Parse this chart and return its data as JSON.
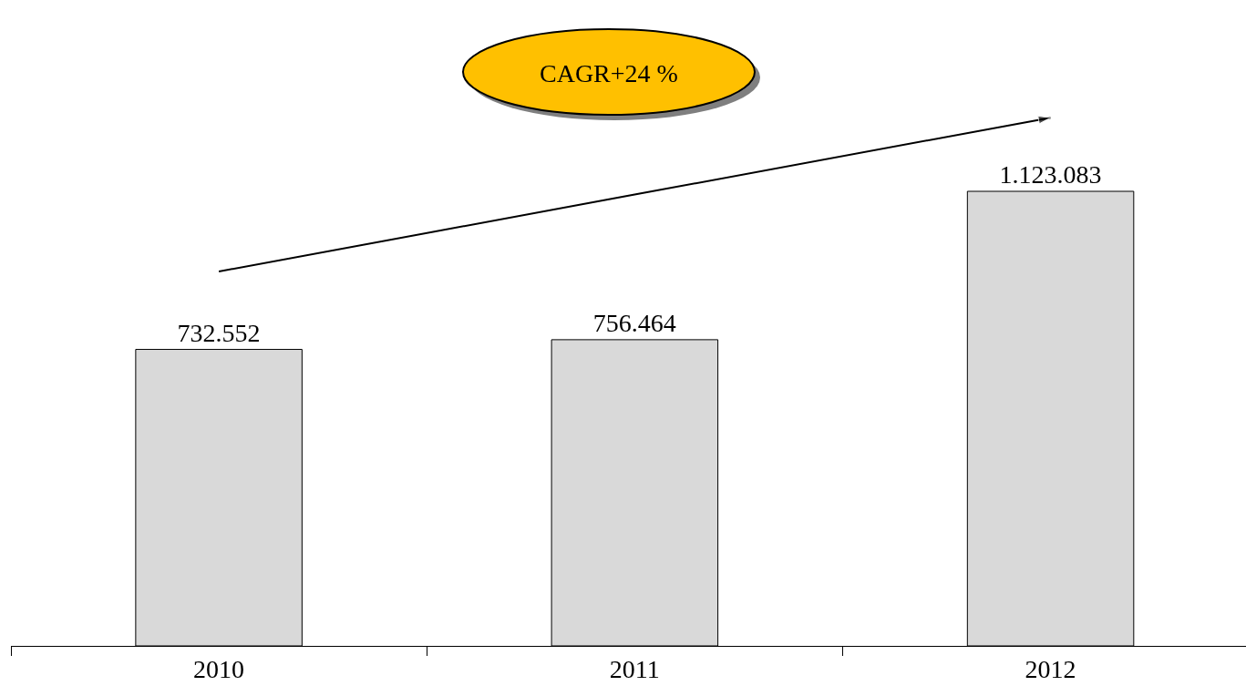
{
  "chart_data": {
    "type": "bar",
    "categories": [
      "2010",
      "2011",
      "2012"
    ],
    "series": [
      {
        "color": "#d9d9d9",
        "values": [
          732552,
          756464,
          1123083
        ],
        "value_labels": [
          "732.552",
          "756.464",
          "1.123.083"
        ]
      },
      {
        "type": "line",
        "color": "#000000",
        "values": [
          925000,
          1115000,
          1305000
        ]
      }
    ],
    "annotations": [
      "CAGR+24 %"
    ]
  }
}
